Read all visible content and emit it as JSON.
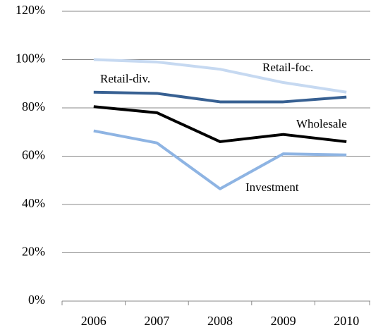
{
  "chart_data": {
    "type": "line",
    "categories": [
      "2006",
      "2007",
      "2008",
      "2009",
      "2010"
    ],
    "series": [
      {
        "name": "Retail-foc.",
        "color": "#c6d9f1",
        "values": [
          100,
          99,
          96,
          90.5,
          86.5
        ]
      },
      {
        "name": "Retail-div.",
        "color": "#376092",
        "values": [
          86.5,
          86,
          82.5,
          82.5,
          84.5
        ]
      },
      {
        "name": "Wholesale",
        "color": "#000000",
        "values": [
          80.5,
          78,
          66,
          69,
          66
        ]
      },
      {
        "name": "Investment",
        "color": "#8eb4e3",
        "values": [
          70.5,
          65.5,
          46.5,
          61,
          60.5
        ]
      }
    ],
    "ylim": [
      0,
      120
    ],
    "yticks": [
      {
        "value": 0,
        "label": "0%"
      },
      {
        "value": 20,
        "label": "20%"
      },
      {
        "value": 40,
        "label": "40%"
      },
      {
        "value": 60,
        "label": "60%"
      },
      {
        "value": 80,
        "label": "80%"
      },
      {
        "value": 100,
        "label": "100%"
      },
      {
        "value": 120,
        "label": "120%"
      }
    ],
    "grid": true
  }
}
